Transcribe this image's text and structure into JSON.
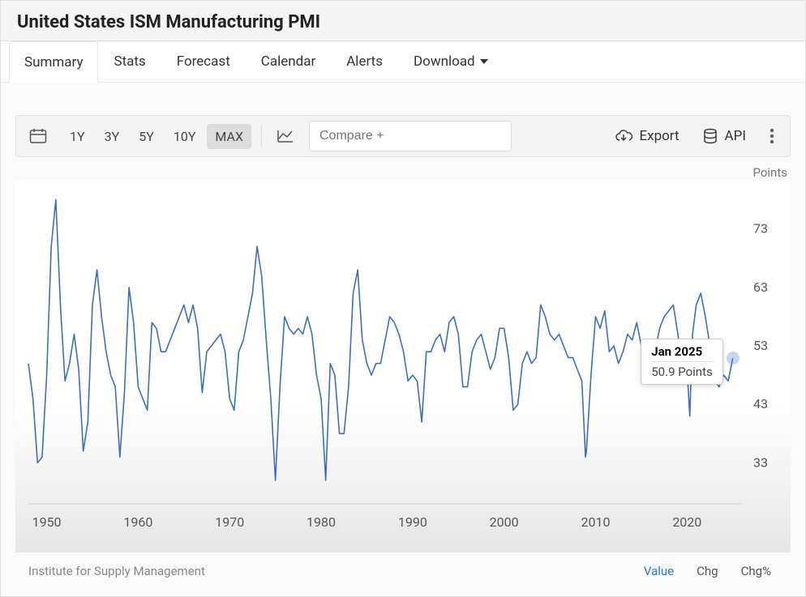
{
  "header": {
    "title": "United States ISM Manufacturing PMI"
  },
  "tabs": [
    {
      "label": "Summary",
      "active": true
    },
    {
      "label": "Stats"
    },
    {
      "label": "Forecast"
    },
    {
      "label": "Calendar"
    },
    {
      "label": "Alerts"
    },
    {
      "label": "Download",
      "dropdown": true
    }
  ],
  "toolbar": {
    "ranges": [
      {
        "label": "1Y"
      },
      {
        "label": "3Y"
      },
      {
        "label": "5Y"
      },
      {
        "label": "10Y"
      },
      {
        "label": "MAX",
        "active": true
      }
    ],
    "compare_placeholder": "Compare +",
    "export_label": "Export",
    "api_label": "API"
  },
  "chart": {
    "type": "line",
    "y_title": "Points",
    "line_color": "#3f6fb7",
    "line_width": 1.6,
    "axis_color": "#999",
    "grid_color": "#e8e8e8",
    "background_color": "#ffffff",
    "gradient_top": "#ffffff",
    "gradient_bottom": "#e6e6e6",
    "xlim": [
      1948,
      2026
    ],
    "ylim": [
      26,
      80
    ],
    "yticks": [
      33,
      43,
      53,
      63,
      73
    ],
    "xticks": [
      1950,
      1960,
      1970,
      1980,
      1990,
      2000,
      2010,
      2020
    ],
    "tick_fontsize": 16,
    "tick_color": "#555",
    "series": [
      [
        1948,
        50
      ],
      [
        1948.5,
        44
      ],
      [
        1949,
        33
      ],
      [
        1949.5,
        34
      ],
      [
        1950,
        48
      ],
      [
        1950.5,
        70
      ],
      [
        1951,
        78
      ],
      [
        1951.5,
        60
      ],
      [
        1952,
        47
      ],
      [
        1952.5,
        50
      ],
      [
        1953,
        55
      ],
      [
        1953.5,
        49
      ],
      [
        1954,
        35
      ],
      [
        1954.5,
        40
      ],
      [
        1955,
        60
      ],
      [
        1955.5,
        66
      ],
      [
        1956,
        58
      ],
      [
        1956.5,
        52
      ],
      [
        1957,
        48
      ],
      [
        1957.5,
        46
      ],
      [
        1958,
        34
      ],
      [
        1958.5,
        45
      ],
      [
        1959,
        63
      ],
      [
        1959.5,
        57
      ],
      [
        1960,
        46
      ],
      [
        1960.5,
        44
      ],
      [
        1961,
        42
      ],
      [
        1961.5,
        57
      ],
      [
        1962,
        56
      ],
      [
        1962.5,
        52
      ],
      [
        1963,
        52
      ],
      [
        1963.5,
        54
      ],
      [
        1964,
        56
      ],
      [
        1964.5,
        58
      ],
      [
        1965,
        60
      ],
      [
        1965.5,
        57
      ],
      [
        1966,
        60
      ],
      [
        1966.5,
        56
      ],
      [
        1967,
        45
      ],
      [
        1967.5,
        52
      ],
      [
        1968,
        53
      ],
      [
        1968.5,
        54
      ],
      [
        1969,
        55
      ],
      [
        1969.5,
        52
      ],
      [
        1970,
        44
      ],
      [
        1970.5,
        42
      ],
      [
        1971,
        52
      ],
      [
        1971.5,
        54
      ],
      [
        1972,
        58
      ],
      [
        1972.5,
        62
      ],
      [
        1973,
        70
      ],
      [
        1973.5,
        65
      ],
      [
        1974,
        54
      ],
      [
        1974.5,
        44
      ],
      [
        1975,
        30
      ],
      [
        1975.5,
        46
      ],
      [
        1976,
        58
      ],
      [
        1976.5,
        56
      ],
      [
        1977,
        55
      ],
      [
        1977.5,
        56
      ],
      [
        1978,
        55
      ],
      [
        1978.5,
        58
      ],
      [
        1979,
        55
      ],
      [
        1979.5,
        48
      ],
      [
        1980,
        44
      ],
      [
        1980.5,
        30
      ],
      [
        1981,
        50
      ],
      [
        1981.5,
        48
      ],
      [
        1982,
        38
      ],
      [
        1982.5,
        38
      ],
      [
        1983,
        46
      ],
      [
        1983.5,
        62
      ],
      [
        1984,
        66
      ],
      [
        1984.5,
        54
      ],
      [
        1985,
        50
      ],
      [
        1985.5,
        48
      ],
      [
        1986,
        50
      ],
      [
        1986.5,
        50
      ],
      [
        1987,
        54
      ],
      [
        1987.5,
        58
      ],
      [
        1988,
        57
      ],
      [
        1988.5,
        55
      ],
      [
        1989,
        52
      ],
      [
        1989.5,
        47
      ],
      [
        1990,
        48
      ],
      [
        1990.5,
        47
      ],
      [
        1991,
        40
      ],
      [
        1991.5,
        52
      ],
      [
        1992,
        52
      ],
      [
        1992.5,
        54
      ],
      [
        1993,
        55
      ],
      [
        1993.5,
        52
      ],
      [
        1994,
        57
      ],
      [
        1994.5,
        58
      ],
      [
        1995,
        55
      ],
      [
        1995.5,
        46
      ],
      [
        1996,
        46
      ],
      [
        1996.5,
        52
      ],
      [
        1997,
        54
      ],
      [
        1997.5,
        55
      ],
      [
        1998,
        52
      ],
      [
        1998.5,
        49
      ],
      [
        1999,
        51
      ],
      [
        1999.5,
        56
      ],
      [
        2000,
        56
      ],
      [
        2000.5,
        51
      ],
      [
        2001,
        42
      ],
      [
        2001.5,
        43
      ],
      [
        2002,
        50
      ],
      [
        2002.5,
        52
      ],
      [
        2003,
        50
      ],
      [
        2003.5,
        51
      ],
      [
        2004,
        60
      ],
      [
        2004.5,
        58
      ],
      [
        2005,
        55
      ],
      [
        2005.5,
        54
      ],
      [
        2006,
        55
      ],
      [
        2006.5,
        53
      ],
      [
        2007,
        51
      ],
      [
        2007.5,
        51
      ],
      [
        2008,
        49
      ],
      [
        2008.5,
        47
      ],
      [
        2008.9,
        34
      ],
      [
        2009,
        35
      ],
      [
        2009.5,
        48
      ],
      [
        2010,
        58
      ],
      [
        2010.5,
        56
      ],
      [
        2011,
        59
      ],
      [
        2011.5,
        52
      ],
      [
        2012,
        53
      ],
      [
        2012.5,
        50
      ],
      [
        2013,
        52
      ],
      [
        2013.5,
        55
      ],
      [
        2014,
        54
      ],
      [
        2014.5,
        57
      ],
      [
        2015,
        53
      ],
      [
        2015.5,
        50
      ],
      [
        2016,
        48
      ],
      [
        2016.5,
        52
      ],
      [
        2017,
        56
      ],
      [
        2017.5,
        58
      ],
      [
        2018,
        59
      ],
      [
        2018.5,
        60
      ],
      [
        2019,
        55
      ],
      [
        2019.5,
        49
      ],
      [
        2020,
        49
      ],
      [
        2020.3,
        41
      ],
      [
        2020.6,
        55
      ],
      [
        2021,
        60
      ],
      [
        2021.5,
        62
      ],
      [
        2022,
        58
      ],
      [
        2022.5,
        53
      ],
      [
        2023,
        47
      ],
      [
        2023.5,
        46
      ],
      [
        2024,
        48
      ],
      [
        2024.5,
        47
      ],
      [
        2025,
        50.9
      ]
    ],
    "tooltip": {
      "date": "Jan 2025",
      "value_text": "50.9 Points",
      "at_x": 2025,
      "at_y": 50.9
    }
  },
  "footer": {
    "source": "Institute for Supply Management",
    "modes": [
      {
        "label": "Value",
        "active": true
      },
      {
        "label": "Chg"
      },
      {
        "label": "Chg%"
      }
    ]
  }
}
